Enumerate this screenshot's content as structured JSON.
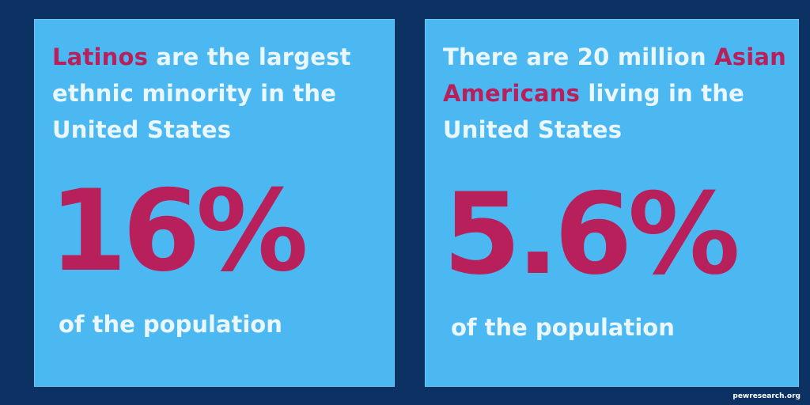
{
  "cards": [
    {
      "headline_highlight": "Latinos",
      "headline_rest": " are the largest ethnic minority in the United States",
      "stat": "16%",
      "caption": "of the population"
    },
    {
      "headline_lead": "There are 20 million ",
      "headline_highlight": "Asian Americans",
      "headline_rest": " living in the United States",
      "stat": "5.6%",
      "caption": "of the population"
    }
  ],
  "source": "pewresearch.org",
  "colors": {
    "background": "#0b3263",
    "card": "#4cb8f1",
    "highlight": "#b7205a",
    "text": "#eaf7ff"
  }
}
